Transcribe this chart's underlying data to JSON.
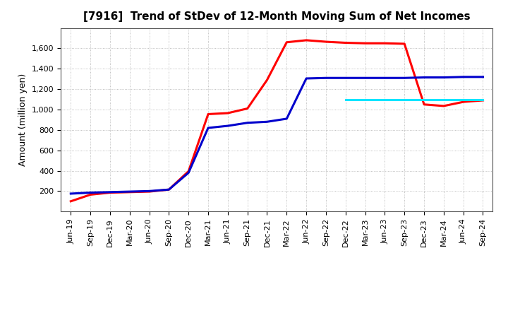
{
  "title": "[7916]  Trend of StDev of 12-Month Moving Sum of Net Incomes",
  "ylabel": "Amount (million yen)",
  "background_color": "#ffffff",
  "grid_color": "#999999",
  "x_labels": [
    "Jun-19",
    "Sep-19",
    "Dec-19",
    "Mar-20",
    "Jun-20",
    "Sep-20",
    "Dec-20",
    "Mar-21",
    "Jun-21",
    "Sep-21",
    "Dec-21",
    "Mar-22",
    "Jun-22",
    "Sep-22",
    "Dec-22",
    "Mar-23",
    "Jun-23",
    "Sep-23",
    "Dec-23",
    "Mar-24",
    "Jun-24",
    "Sep-24"
  ],
  "series": {
    "3 Years": {
      "color": "#ff0000",
      "linewidth": 2.2,
      "values": [
        100,
        165,
        185,
        190,
        195,
        215,
        395,
        955,
        965,
        1010,
        1290,
        1660,
        1680,
        1665,
        1655,
        1650,
        1650,
        1645,
        1050,
        1035,
        1075,
        1090
      ]
    },
    "5 Years": {
      "color": "#0000cc",
      "linewidth": 2.2,
      "values": [
        175,
        185,
        190,
        195,
        200,
        215,
        380,
        820,
        840,
        870,
        880,
        910,
        1305,
        1310,
        1310,
        1310,
        1310,
        1310,
        1315,
        1315,
        1320,
        1320
      ]
    },
    "7 Years": {
      "color": "#00e5ff",
      "linewidth": 2.2,
      "values": [
        null,
        null,
        null,
        null,
        null,
        null,
        null,
        null,
        null,
        null,
        null,
        null,
        null,
        null,
        1095,
        1095,
        1095,
        1095,
        1095,
        1095,
        1095,
        1095
      ]
    },
    "10 Years": {
      "color": "#008000",
      "linewidth": 2.2,
      "values": [
        null,
        null,
        null,
        null,
        null,
        null,
        null,
        null,
        null,
        null,
        null,
        null,
        null,
        null,
        null,
        null,
        null,
        null,
        null,
        null,
        null,
        null
      ]
    }
  },
  "ylim": [
    0,
    1800
  ],
  "yticks": [
    200,
    400,
    600,
    800,
    1000,
    1200,
    1400,
    1600
  ],
  "legend_ncol": 4,
  "title_fontsize": 11,
  "tick_fontsize": 8,
  "ylabel_fontsize": 9
}
